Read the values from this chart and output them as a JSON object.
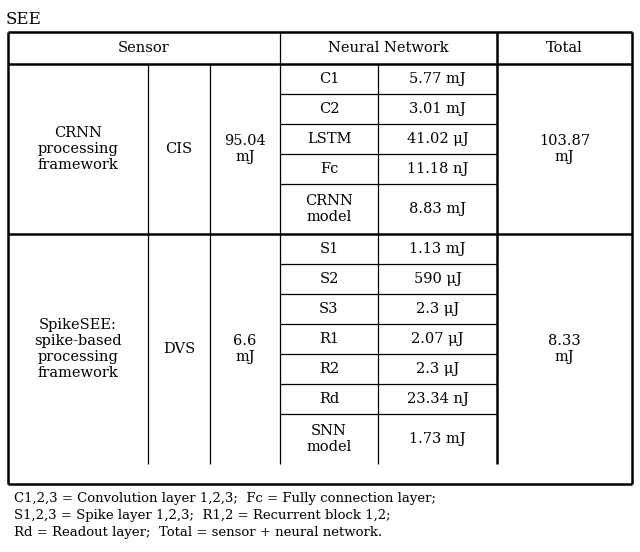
{
  "title": "SEE",
  "caption_lines": [
    "C1,2,3 = Convolution layer 1,2,3;  Fc = Fully connection layer;",
    "S1,2,3 = Spike layer 1,2,3;  R1,2 = Recurrent block 1,2;",
    "Rd = Readout layer;  Total = sensor + neural network."
  ],
  "row1_label": "CRNN\nprocessing\nframework",
  "row1_sensor_type": "CIS",
  "row1_sensor_val": "95.04\nmJ",
  "row1_nn": [
    [
      "C1",
      "5.77 mJ"
    ],
    [
      "C2",
      "3.01 mJ"
    ],
    [
      "LSTM",
      "41.02 μJ"
    ],
    [
      "Fc",
      "11.18 nJ"
    ],
    [
      "CRNN\nmodel",
      "8.83 mJ"
    ]
  ],
  "row1_total": "103.87\nmJ",
  "row2_label": "SpikeSEE:\nspike-based\nprocessing\nframework",
  "row2_sensor_type": "DVS",
  "row2_sensor_val": "6.6\nmJ",
  "row2_nn": [
    [
      "S1",
      "1.13 mJ"
    ],
    [
      "S2",
      "590 μJ"
    ],
    [
      "S3",
      "2.3 μJ"
    ],
    [
      "R1",
      "2.07 μJ"
    ],
    [
      "R2",
      "2.3 μJ"
    ],
    [
      "Rd",
      "23.34 nJ"
    ],
    [
      "SNN\nmodel",
      "1.73 mJ"
    ]
  ],
  "row2_total": "8.33\nmJ",
  "bg_color": "white",
  "text_color": "black",
  "line_color": "black",
  "font_size": 10.5,
  "caption_font_size": 9.5,
  "title_font_size": 12,
  "lw_outer": 1.8,
  "lw_inner": 0.9
}
